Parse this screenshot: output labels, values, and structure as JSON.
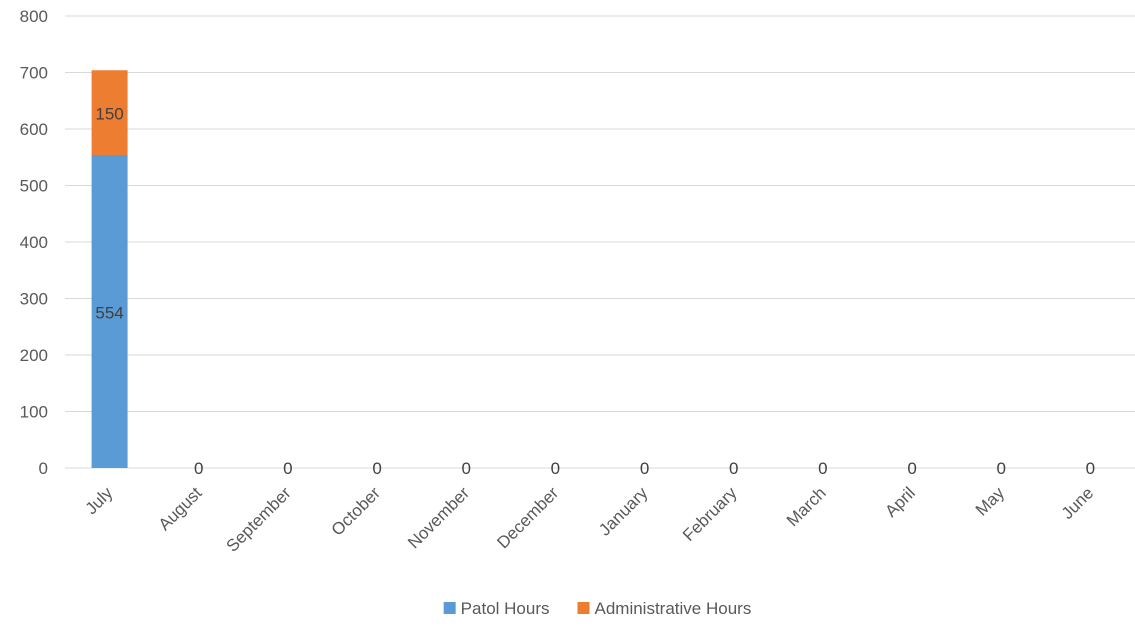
{
  "chart_data": {
    "type": "bar",
    "stacked": true,
    "categories": [
      "July",
      "August",
      "September",
      "October",
      "November",
      "December",
      "January",
      "February",
      "March",
      "April",
      "May",
      "June"
    ],
    "series": [
      {
        "name": "Patol Hours",
        "color": "#5b9bd5",
        "values": [
          554,
          0,
          0,
          0,
          0,
          0,
          0,
          0,
          0,
          0,
          0,
          0
        ],
        "data_labels": [
          "554",
          "0",
          "0",
          "0",
          "0",
          "0",
          "0",
          "0",
          "0",
          "0",
          "0",
          "0"
        ]
      },
      {
        "name": "Administrative Hours",
        "color": "#ed7d31",
        "values": [
          150,
          0,
          0,
          0,
          0,
          0,
          0,
          0,
          0,
          0,
          0,
          0
        ],
        "data_labels": [
          "150",
          "",
          "",
          "",
          "",
          "",
          "",
          "",
          "",
          "",
          "",
          ""
        ]
      }
    ],
    "ylim": [
      0,
      800
    ],
    "yticks": [
      0,
      100,
      200,
      300,
      400,
      500,
      600,
      700,
      800
    ],
    "grid": true,
    "legend": "bottom"
  }
}
